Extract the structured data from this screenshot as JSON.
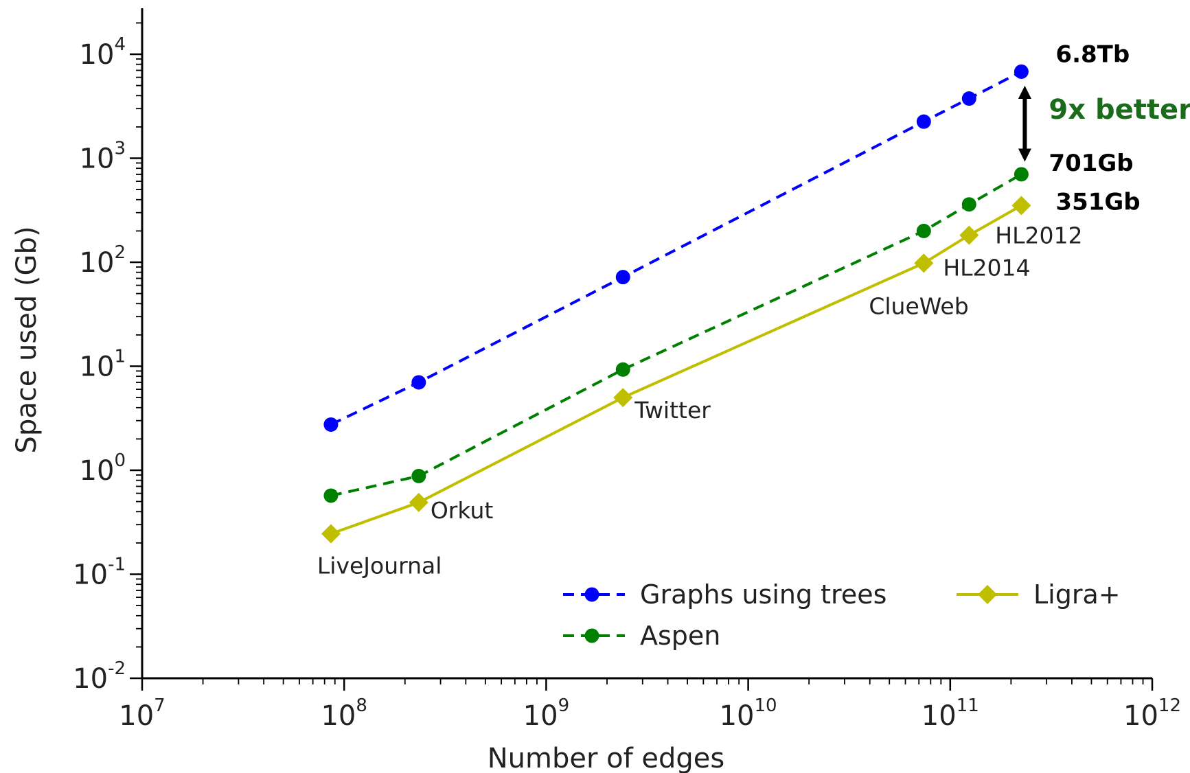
{
  "chart_data": {
    "type": "line",
    "xscale": "log",
    "yscale": "log",
    "xlabel": "Number of edges",
    "ylabel": "Space used (Gb)",
    "xlim": [
      10000000,
      1000000000000
    ],
    "ylim": [
      0.01,
      30000
    ],
    "x_ticks": [
      {
        "base": "10",
        "exp": "7",
        "value": 10000000
      },
      {
        "base": "10",
        "exp": "8",
        "value": 100000000
      },
      {
        "base": "10",
        "exp": "9",
        "value": 1000000000
      },
      {
        "base": "10",
        "exp": "10",
        "value": 10000000000
      },
      {
        "base": "10",
        "exp": "11",
        "value": 100000000000
      },
      {
        "base": "10",
        "exp": "12",
        "value": 1000000000000
      }
    ],
    "y_ticks": [
      {
        "base": "10",
        "exp": "-2",
        "value": 0.01
      },
      {
        "base": "10",
        "exp": "-1",
        "value": 0.1
      },
      {
        "base": "10",
        "exp": "0",
        "value": 1
      },
      {
        "base": "10",
        "exp": "1",
        "value": 10
      },
      {
        "base": "10",
        "exp": "2",
        "value": 100
      },
      {
        "base": "10",
        "exp": "3",
        "value": 1000
      },
      {
        "base": "10",
        "exp": "4",
        "value": 10000
      }
    ],
    "grid": false,
    "legend_position": "lower-right",
    "x": [
      86000000,
      234000000,
      2400000000,
      74000000000,
      124000000000,
      225000000000
    ],
    "series": [
      {
        "name": "Graphs using trees",
        "color": "#0000ff",
        "line": "dashed",
        "marker": "circle",
        "values": [
          2.75,
          7.0,
          72,
          2250,
          3750,
          6800
        ]
      },
      {
        "name": "Aspen",
        "color": "#008000",
        "line": "dashed",
        "marker": "circle",
        "values": [
          0.57,
          0.88,
          9.3,
          200,
          360,
          701
        ]
      },
      {
        "name": "Ligra+",
        "color": "#bfbf00",
        "line": "solid",
        "marker": "diamond",
        "values": [
          0.245,
          0.49,
          5.0,
          98,
          182,
          351
        ]
      }
    ],
    "point_labels": [
      {
        "text": "LiveJournal",
        "index": 0
      },
      {
        "text": "Orkut",
        "index": 1
      },
      {
        "text": "Twitter",
        "index": 2
      },
      {
        "text": "ClueWeb",
        "index": 3
      },
      {
        "text": "HL2014",
        "index": 3
      },
      {
        "text": "HL2012",
        "index": 4
      }
    ],
    "annotations": {
      "trees_end": "6.8Tb",
      "aspen_end": "701Gb",
      "ligra_end": "351Gb",
      "improvement": "9x better",
      "improvement_color": "#1a6b1a"
    }
  }
}
